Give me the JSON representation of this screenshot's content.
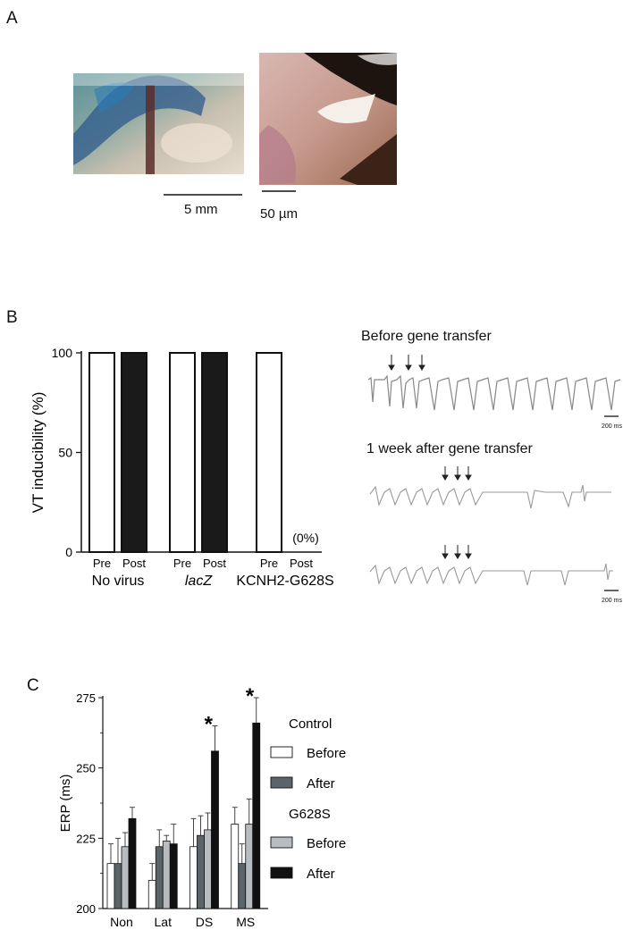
{
  "panels": {
    "a": {
      "label": "A",
      "scale_left": "5 mm",
      "scale_right": "50 µm"
    },
    "b": {
      "label": "B",
      "trace_top_title": "Before gene transfer",
      "trace_bottom_title": "1 week after gene transfer",
      "scale_top": "200 ms",
      "scale_bottom": "200 ms"
    },
    "c": {
      "label": "C"
    }
  },
  "chart_data": [
    {
      "type": "bar",
      "ylabel": "VT inducibility (%)",
      "ylim": [
        0,
        100
      ],
      "yticks": [
        0,
        50,
        100
      ],
      "groups": [
        {
          "name": "No virus",
          "bars": [
            {
              "label": "Pre",
              "value": 100,
              "fill": "#ffffff"
            },
            {
              "label": "Post",
              "value": 100,
              "fill": "#1a1a1a"
            }
          ]
        },
        {
          "name": "lacZ",
          "bars": [
            {
              "label": "Pre",
              "value": 100,
              "fill": "#ffffff"
            },
            {
              "label": "Post",
              "value": 100,
              "fill": "#1a1a1a"
            }
          ]
        },
        {
          "name": "KCNH2-G628S",
          "bars": [
            {
              "label": "Pre",
              "value": 100,
              "fill": "#ffffff"
            },
            {
              "label": "Post",
              "value": 0,
              "fill": "#1a1a1a"
            }
          ]
        }
      ],
      "annotation": "(0%)"
    },
    {
      "type": "bar",
      "ylabel": "ERP (ms)",
      "ylim": [
        200,
        275
      ],
      "yticks": [
        200,
        225,
        250,
        275
      ],
      "categories": [
        "Non",
        "Lat",
        "DS",
        "MS"
      ],
      "series": [
        {
          "values": [
            216,
            210,
            222,
            230
          ],
          "errors": [
            7,
            6,
            10,
            6
          ],
          "color": "#ffffff"
        },
        {
          "values": [
            216,
            222,
            226,
            216
          ],
          "errors": [
            9,
            6,
            7,
            7
          ],
          "color": "#5b6468"
        },
        {
          "values": [
            222,
            224,
            228,
            230
          ],
          "errors": [
            5,
            2,
            6,
            9
          ],
          "color": "#b7bcc0"
        },
        {
          "values": [
            232,
            223,
            256,
            266
          ],
          "errors": [
            4,
            7,
            9,
            9
          ],
          "color": "#111111"
        }
      ],
      "significance": [
        "",
        "",
        "*",
        "*"
      ],
      "legend": {
        "groups": [
          {
            "title": "Control",
            "items": [
              {
                "label": "Before",
                "color": "#ffffff"
              },
              {
                "label": "After",
                "color": "#5b6468"
              }
            ]
          },
          {
            "title": "G628S",
            "items": [
              {
                "label": "Before",
                "color": "#b7bcc0"
              },
              {
                "label": "After",
                "color": "#111111"
              }
            ]
          }
        ],
        "placement": "right"
      }
    }
  ]
}
